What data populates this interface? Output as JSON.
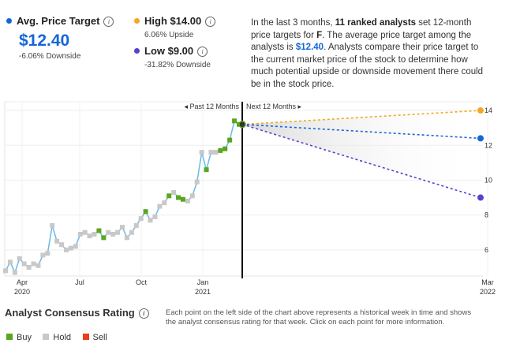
{
  "summary": {
    "avg_label": "Avg. Price Target",
    "avg_value": "$12.40",
    "avg_sub": "-6.06% Downside",
    "high_label": "High $14.00",
    "high_sub": "6.06% Upside",
    "low_label": "Low $9.00",
    "low_sub": "-31.82% Downside",
    "info_glyph": "i"
  },
  "description": {
    "p1": "In the last 3 months, ",
    "analysts": "11 ranked analysts",
    "p2": " set 12-month price targets for ",
    "ticker": "F",
    "p3": ". The average price target among the analysts is ",
    "avg": "$12.40",
    "p4": ". Analysts compare their price target to the current market price of the stock to determine how much potential upside or downside movement there could be in the stock price."
  },
  "colors": {
    "avg": "#1565d8",
    "high": "#f5a623",
    "low": "#5b3fd1",
    "buy": "#5aa61e",
    "hold": "#c8c8c8",
    "sell": "#e8401c",
    "line": "#6cb8ea"
  },
  "chart_data": {
    "type": "line",
    "past_label": "◂ Past 12 Months",
    "next_label": "Next 12 Months ▸",
    "x_ticks": [
      {
        "label": "Apr",
        "sub": "2020"
      },
      {
        "label": "Jul",
        "sub": ""
      },
      {
        "label": "Oct",
        "sub": ""
      },
      {
        "label": "Jan",
        "sub": "2021"
      },
      {
        "label": "Mar",
        "sub": "2022"
      }
    ],
    "y_ticks": [
      6,
      8,
      10,
      12,
      14
    ],
    "y_range": [
      4.5,
      14.5
    ],
    "price_series": [
      {
        "y": 4.8,
        "r": "hold"
      },
      {
        "y": 5.3,
        "r": "hold"
      },
      {
        "y": 4.7,
        "r": "hold"
      },
      {
        "y": 5.5,
        "r": "hold"
      },
      {
        "y": 5.2,
        "r": "hold"
      },
      {
        "y": 5.0,
        "r": "hold"
      },
      {
        "y": 5.2,
        "r": "hold"
      },
      {
        "y": 5.1,
        "r": "hold"
      },
      {
        "y": 5.7,
        "r": "hold"
      },
      {
        "y": 5.8,
        "r": "hold"
      },
      {
        "y": 7.4,
        "r": "hold"
      },
      {
        "y": 6.5,
        "r": "hold"
      },
      {
        "y": 6.3,
        "r": "hold"
      },
      {
        "y": 6.0,
        "r": "hold"
      },
      {
        "y": 6.1,
        "r": "hold"
      },
      {
        "y": 6.2,
        "r": "hold"
      },
      {
        "y": 6.9,
        "r": "hold"
      },
      {
        "y": 7.0,
        "r": "hold"
      },
      {
        "y": 6.8,
        "r": "hold"
      },
      {
        "y": 6.9,
        "r": "hold"
      },
      {
        "y": 7.1,
        "r": "buy"
      },
      {
        "y": 6.7,
        "r": "buy"
      },
      {
        "y": 7.0,
        "r": "hold"
      },
      {
        "y": 6.9,
        "r": "hold"
      },
      {
        "y": 7.0,
        "r": "hold"
      },
      {
        "y": 7.3,
        "r": "hold"
      },
      {
        "y": 6.7,
        "r": "hold"
      },
      {
        "y": 7.0,
        "r": "hold"
      },
      {
        "y": 7.4,
        "r": "hold"
      },
      {
        "y": 7.8,
        "r": "hold"
      },
      {
        "y": 8.2,
        "r": "buy"
      },
      {
        "y": 7.7,
        "r": "hold"
      },
      {
        "y": 7.9,
        "r": "hold"
      },
      {
        "y": 8.5,
        "r": "hold"
      },
      {
        "y": 8.7,
        "r": "hold"
      },
      {
        "y": 9.1,
        "r": "buy"
      },
      {
        "y": 9.3,
        "r": "hold"
      },
      {
        "y": 9.0,
        "r": "buy"
      },
      {
        "y": 8.9,
        "r": "buy"
      },
      {
        "y": 8.8,
        "r": "hold"
      },
      {
        "y": 9.1,
        "r": "hold"
      },
      {
        "y": 9.9,
        "r": "hold"
      },
      {
        "y": 11.6,
        "r": "hold"
      },
      {
        "y": 10.6,
        "r": "buy"
      },
      {
        "y": 11.6,
        "r": "hold"
      },
      {
        "y": 11.6,
        "r": "hold"
      },
      {
        "y": 11.7,
        "r": "buy"
      },
      {
        "y": 11.8,
        "r": "buy"
      },
      {
        "y": 12.3,
        "r": "buy"
      },
      {
        "y": 13.4,
        "r": "buy"
      },
      {
        "y": 13.2,
        "r": "buy"
      }
    ],
    "current_price": 13.2,
    "targets": {
      "high": 14.0,
      "avg": 12.4,
      "low": 9.0
    }
  },
  "bottom": {
    "title": "Analyst Consensus Rating",
    "note": "Each point on the left side of the chart above represents a historical week in time and shows the analyst consensus rating for that week. Click on each point for more information.",
    "legend": {
      "buy": "Buy",
      "hold": "Hold",
      "sell": "Sell"
    }
  }
}
